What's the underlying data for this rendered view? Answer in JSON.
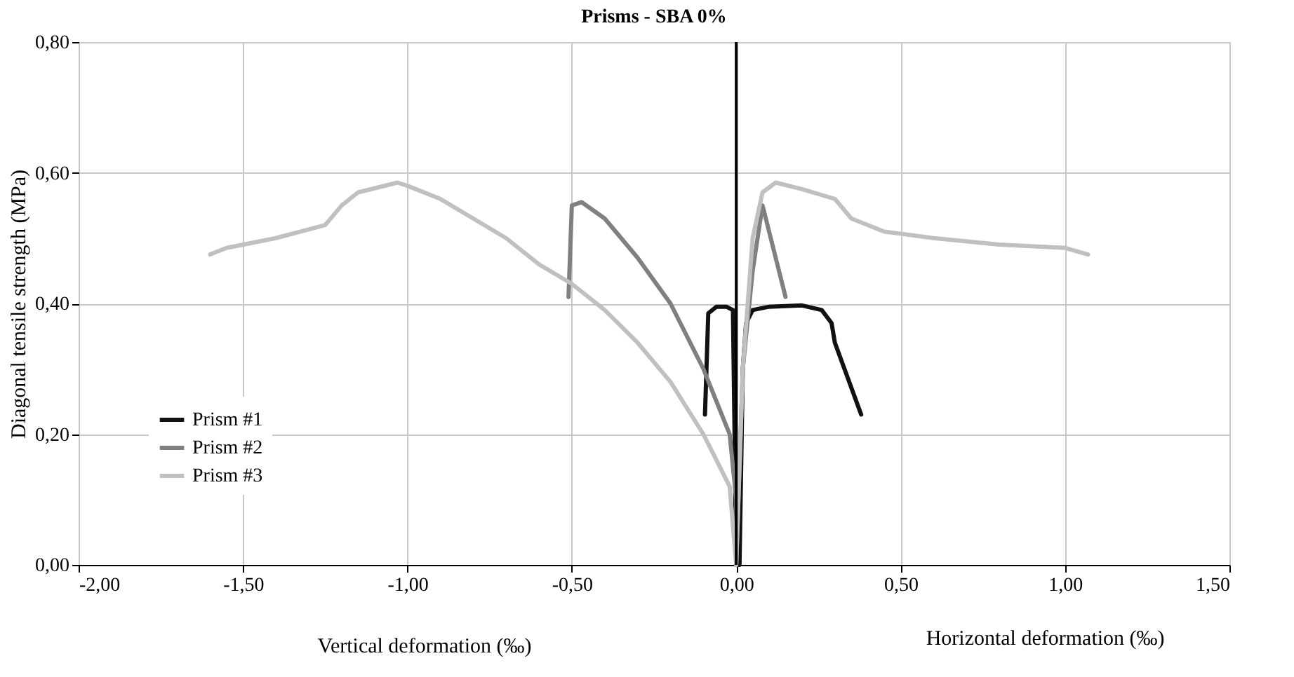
{
  "chart_data": {
    "type": "line",
    "title": "Prisms - SBA 0%",
    "xlabel": "Vertical deformation (‰)",
    "ylabel": "Diagonal tensile strength (MPa)",
    "annotations": [
      "Horizontal deformation (‰)"
    ],
    "xlim": [
      -2,
      1.5
    ],
    "ylim": [
      0,
      0.8
    ],
    "xticks": [
      {
        "value": -2,
        "label": "-2,00"
      },
      {
        "value": -1.5,
        "label": "-1,50"
      },
      {
        "value": -1,
        "label": "-1,00"
      },
      {
        "value": -0.5,
        "label": "-0,50"
      },
      {
        "value": 0,
        "label": "0,00"
      },
      {
        "value": 0.5,
        "label": "0,50"
      },
      {
        "value": 1,
        "label": "1,00"
      },
      {
        "value": 1.5,
        "label": "1,50"
      }
    ],
    "yticks": [
      {
        "value": 0,
        "label": "0,00"
      },
      {
        "value": 0.2,
        "label": "0,20"
      },
      {
        "value": 0.4,
        "label": "0,40"
      },
      {
        "value": 0.6,
        "label": "0,60"
      },
      {
        "value": 0.8,
        "label": "0,80"
      }
    ],
    "grid": true,
    "legend": "bottom left",
    "marker": "none",
    "line_style": "solid",
    "ref_lines": [
      {
        "axis": "x",
        "value": 0,
        "color": "#000000"
      }
    ],
    "series": [
      {
        "name": "Prism #1",
        "color": "#111111",
        "x": [
          -0.095,
          -0.085,
          -0.06,
          -0.03,
          -0.01,
          -0.005,
          0,
          0.01,
          0.02,
          0.03,
          0.05,
          0.1,
          0.2,
          0.26,
          0.29,
          0.3,
          0.38
        ],
        "values": [
          0.23,
          0.385,
          0.395,
          0.395,
          0.39,
          0.2,
          0,
          0,
          0.3,
          0.37,
          0.39,
          0.395,
          0.397,
          0.39,
          0.37,
          0.34,
          0.23
        ]
      },
      {
        "name": "Prism #2",
        "color": "#808080",
        "x": [
          -0.51,
          -0.5,
          -0.47,
          -0.4,
          -0.3,
          -0.2,
          -0.1,
          -0.02,
          0,
          0,
          0.02,
          0.05,
          0.08,
          0.15
        ],
        "values": [
          0.41,
          0.55,
          0.555,
          0.53,
          0.47,
          0.4,
          0.3,
          0.2,
          0.1,
          0,
          0.3,
          0.45,
          0.55,
          0.41
        ]
      },
      {
        "name": "Prism #3",
        "color": "#c0c0c0",
        "x": [
          -1.6,
          -1.55,
          -1.4,
          -1.25,
          -1.2,
          -1.15,
          -1.03,
          -1.0,
          -0.9,
          -0.8,
          -0.7,
          -0.6,
          -0.5,
          -0.4,
          -0.3,
          -0.2,
          -0.1,
          -0.05,
          -0.02,
          0,
          0.02,
          0.05,
          0.08,
          0.12,
          0.2,
          0.3,
          0.35,
          0.45,
          0.6,
          0.8,
          1.0,
          1.07
        ],
        "values": [
          0.475,
          0.485,
          0.5,
          0.52,
          0.55,
          0.57,
          0.585,
          0.58,
          0.56,
          0.53,
          0.5,
          0.46,
          0.43,
          0.39,
          0.34,
          0.28,
          0.2,
          0.15,
          0.12,
          0,
          0.3,
          0.5,
          0.57,
          0.585,
          0.575,
          0.56,
          0.53,
          0.51,
          0.5,
          0.49,
          0.485,
          0.475
        ]
      }
    ]
  }
}
